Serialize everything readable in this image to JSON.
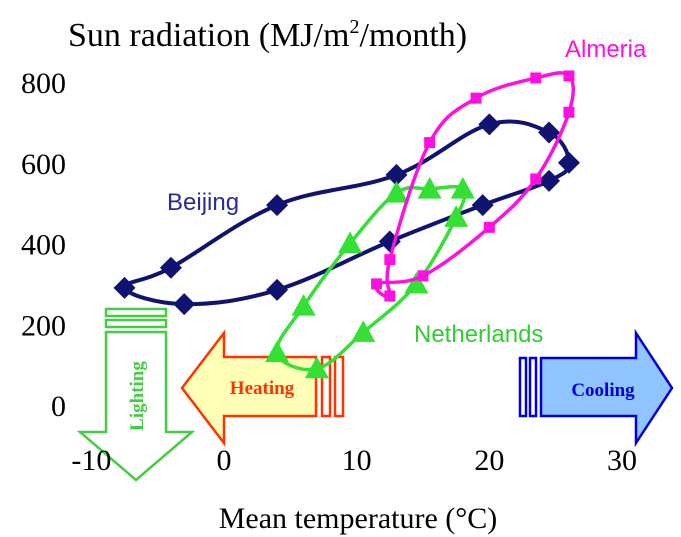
{
  "chart_data": {
    "type": "line",
    "title_main": "Sun radiation (MJ/m",
    "title_sup": "2",
    "title_end": "/month)",
    "xlabel": "Mean temperature (°C)",
    "ylabel": "",
    "xlim": [
      -10,
      30
    ],
    "ylim": [
      0,
      800
    ],
    "x_ticks": [
      -10,
      0,
      10,
      20,
      30
    ],
    "y_ticks": [
      0,
      200,
      400,
      600,
      800
    ],
    "grid": false,
    "series": [
      {
        "name": "Beijing",
        "color": "#101470",
        "marker": "diamond",
        "points": [
          [
            -7.5,
            290
          ],
          [
            -4,
            340
          ],
          [
            4,
            495
          ],
          [
            13,
            570
          ],
          [
            20,
            695
          ],
          [
            24.5,
            675
          ],
          [
            26,
            600
          ],
          [
            24.5,
            555
          ],
          [
            19.5,
            495
          ],
          [
            12.5,
            405
          ],
          [
            4,
            285
          ],
          [
            -3,
            250
          ],
          [
            -7.5,
            290
          ]
        ]
      },
      {
        "name": "Netherlands",
        "color": "#33e033",
        "marker": "triangle",
        "points": [
          [
            4,
            130
          ],
          [
            6,
            245
          ],
          [
            9.5,
            400
          ],
          [
            13,
            525
          ],
          [
            15.5,
            535
          ],
          [
            18,
            535
          ],
          [
            17.5,
            465
          ],
          [
            14.5,
            300
          ],
          [
            10.5,
            180
          ],
          [
            7,
            90
          ],
          [
            4,
            130
          ]
        ]
      },
      {
        "name": "Almeria",
        "color": "#ff10e0",
        "marker": "square",
        "points": [
          [
            12.5,
            270
          ],
          [
            12.5,
            360
          ],
          [
            15.5,
            650
          ],
          [
            19,
            760
          ],
          [
            23.5,
            810
          ],
          [
            26,
            815
          ],
          [
            26,
            725
          ],
          [
            23.5,
            560
          ],
          [
            20,
            440
          ],
          [
            15,
            320
          ],
          [
            11.5,
            300
          ],
          [
            12.5,
            270
          ]
        ]
      }
    ],
    "annotations": {
      "lighting": "Lighting",
      "heating": "Heating",
      "cooling": "Cooling"
    },
    "colors": {
      "lighting": "#44cc44",
      "heating": "#ff3300",
      "heating_fill": "#ffffb8",
      "cooling": "#0000dd",
      "cooling_fill": "#8fc4ff"
    }
  }
}
